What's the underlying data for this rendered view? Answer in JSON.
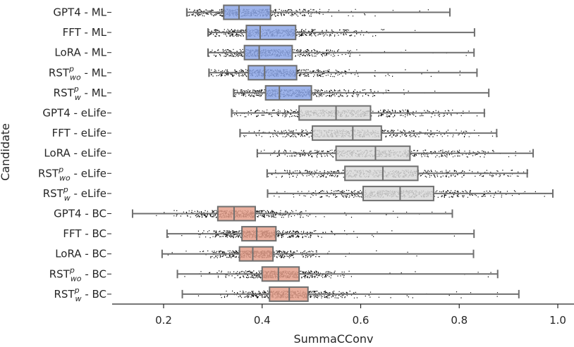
{
  "chart_data": {
    "type": "boxplot",
    "orientation": "horizontal",
    "xlabel": "SummaCConv",
    "ylabel": "Candidate",
    "xlim": [
      0.1,
      1.03
    ],
    "xticks": [
      "0.2",
      "0.4",
      "0.6",
      "0.8",
      "1.0"
    ],
    "xtick_values": [
      0.2,
      0.4,
      0.6,
      0.8,
      1.0
    ],
    "grid": false,
    "jitter_points": "dense black strip points overlaid on each box",
    "groups": [
      {
        "name": "ML",
        "color": "#8da7e8"
      },
      {
        "name": "eLife",
        "color": "#d9d9d9"
      },
      {
        "name": "BC",
        "color": "#e5a08c"
      }
    ],
    "series": [
      {
        "base": "GPT4",
        "sup": "",
        "sub": "",
        "suffix": " - ML",
        "group": 0,
        "min": 0.247,
        "q1": 0.322,
        "median": 0.353,
        "q3": 0.417,
        "max": 0.781
      },
      {
        "base": "FFT",
        "sup": "",
        "sub": "",
        "suffix": " - ML",
        "group": 0,
        "min": 0.29,
        "q1": 0.368,
        "median": 0.396,
        "q3": 0.468,
        "max": 0.831
      },
      {
        "base": "LoRA",
        "sup": "",
        "sub": "",
        "suffix": " - ML",
        "group": 0,
        "min": 0.29,
        "q1": 0.364,
        "median": 0.394,
        "q3": 0.461,
        "max": 0.83
      },
      {
        "base": "RST",
        "sup": "p",
        "sub": "wo",
        "suffix": " - ML",
        "group": 0,
        "min": 0.292,
        "q1": 0.372,
        "median": 0.405,
        "q3": 0.47,
        "max": 0.836
      },
      {
        "base": "RST",
        "sup": "p",
        "sub": "w",
        "suffix": " - ML",
        "group": 0,
        "min": 0.342,
        "q1": 0.407,
        "median": 0.435,
        "q3": 0.5,
        "max": 0.86
      },
      {
        "base": "GPT4",
        "sup": "",
        "sub": "",
        "suffix": " - eLife",
        "group": 1,
        "min": 0.338,
        "q1": 0.475,
        "median": 0.55,
        "q3": 0.62,
        "max": 0.851
      },
      {
        "base": "FFT",
        "sup": "",
        "sub": "",
        "suffix": " - eLife",
        "group": 1,
        "min": 0.355,
        "q1": 0.502,
        "median": 0.584,
        "q3": 0.642,
        "max": 0.876
      },
      {
        "base": "LoRA",
        "sup": "",
        "sub": "",
        "suffix": " - eLife",
        "group": 1,
        "min": 0.39,
        "q1": 0.55,
        "median": 0.63,
        "q3": 0.7,
        "max": 0.95
      },
      {
        "base": "RST",
        "sup": "p",
        "sub": "wo",
        "suffix": " - eLife",
        "group": 1,
        "min": 0.41,
        "q1": 0.568,
        "median": 0.645,
        "q3": 0.716,
        "max": 0.938
      },
      {
        "base": "RST",
        "sup": "p",
        "sub": "w",
        "suffix": " - eLife",
        "group": 1,
        "min": 0.411,
        "q1": 0.605,
        "median": 0.68,
        "q3": 0.748,
        "max": 0.99
      },
      {
        "base": "GPT4",
        "sup": "",
        "sub": "",
        "suffix": " - BC",
        "group": 2,
        "min": 0.137,
        "q1": 0.31,
        "median": 0.343,
        "q3": 0.386,
        "max": 0.786
      },
      {
        "base": "FFT",
        "sup": "",
        "sub": "",
        "suffix": " - BC",
        "group": 2,
        "min": 0.207,
        "q1": 0.359,
        "median": 0.389,
        "q3": 0.428,
        "max": 0.83
      },
      {
        "base": "LoRA",
        "sup": "",
        "sub": "",
        "suffix": " - BC",
        "group": 2,
        "min": 0.197,
        "q1": 0.354,
        "median": 0.381,
        "q3": 0.422,
        "max": 0.829
      },
      {
        "base": "RST",
        "sup": "p",
        "sub": "wo",
        "suffix": " - BC",
        "group": 2,
        "min": 0.228,
        "q1": 0.4,
        "median": 0.433,
        "q3": 0.475,
        "max": 0.878
      },
      {
        "base": "RST",
        "sup": "p",
        "sub": "w",
        "suffix": " - BC",
        "group": 2,
        "min": 0.238,
        "q1": 0.415,
        "median": 0.455,
        "q3": 0.493,
        "max": 0.921
      }
    ]
  }
}
